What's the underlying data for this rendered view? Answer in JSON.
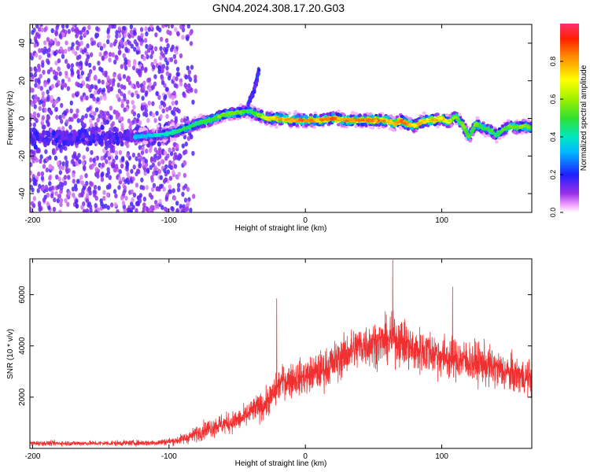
{
  "figure_title": "GN04.2024.308.17.20.G03",
  "colors": {
    "snr_line": "#f03030",
    "frame": "#000000",
    "background": "#ffffff"
  },
  "chart_data": [
    {
      "type": "heatmap",
      "title": "GN04.2024.308.17.20.G03",
      "xlabel": "Height of straight line (km)",
      "ylabel": "Frequency (Hz)",
      "xlim": [
        -202,
        166
      ],
      "ylim": [
        -50,
        50
      ],
      "x_ticks": [
        -200,
        -100,
        0,
        100
      ],
      "y_ticks": [
        -40,
        -20,
        0,
        20,
        40
      ],
      "colorbar": {
        "label": "Normalized spectral amplitude",
        "range": [
          0,
          1
        ],
        "ticks": [
          0.0,
          0.2,
          0.4,
          0.6,
          0.8
        ],
        "colormap": "rainbow (white→magenta→purple→blue→cyan→green→yellow→orange→red)"
      },
      "ridge": {
        "description": "dominant frequency track",
        "x": [
          -125,
          -110,
          -100,
          -90,
          -80,
          -70,
          -60,
          -50,
          -42,
          -35,
          -28,
          -20,
          -10,
          0,
          10,
          20,
          30,
          40,
          50,
          60,
          65,
          70,
          75,
          80,
          85,
          90,
          95,
          100,
          105,
          110,
          115,
          120,
          125,
          130,
          135,
          140,
          145,
          150,
          155,
          160,
          166
        ],
        "freq": [
          -10,
          -9,
          -8,
          -6,
          -3,
          -1,
          2,
          3,
          4,
          2,
          0,
          0,
          -1,
          -1,
          -1,
          0,
          -1,
          -1,
          -1,
          -1,
          -3,
          -1,
          -3,
          -4,
          -2,
          -1,
          -1,
          0,
          -2,
          1,
          -3,
          -10,
          -3,
          -5,
          -6,
          -9,
          -6,
          -4,
          -5,
          -4,
          -5
        ],
        "amplitude": [
          0.35,
          0.4,
          0.45,
          0.5,
          0.5,
          0.55,
          0.6,
          0.6,
          0.5,
          0.6,
          0.75,
          0.85,
          0.85,
          0.9,
          0.85,
          0.9,
          0.85,
          0.9,
          0.9,
          0.85,
          0.8,
          0.9,
          0.85,
          0.8,
          0.85,
          0.8,
          0.85,
          0.8,
          0.7,
          0.6,
          0.6,
          0.55,
          0.6,
          0.5,
          0.55,
          0.5,
          0.55,
          0.6,
          0.6,
          0.6,
          0.55
        ]
      },
      "noise_region": {
        "x_range": [
          -202,
          -80
        ],
        "freq_range": [
          -50,
          50
        ],
        "amplitude": 0.15
      },
      "side_branch": {
        "x": [
          -42,
          -38,
          -34
        ],
        "freq": [
          8,
          14,
          25
        ],
        "amplitude": 0.25
      }
    },
    {
      "type": "line",
      "xlabel": "Height of straight line (km)",
      "ylabel": "SNR (10 * v/v)",
      "xlim": [
        -202,
        166
      ],
      "ylim": [
        0,
        7400
      ],
      "x_ticks": [
        -200,
        -100,
        0,
        100
      ],
      "y_ticks": [
        2000,
        4000,
        6000
      ],
      "series": [
        {
          "envelope": {
            "x": [
              -202,
              -150,
              -110,
              -95,
              -85,
              -75,
              -65,
              -55,
              -45,
              -38,
              -30,
              -22,
              -18,
              -10,
              0,
              10,
              20,
              30,
              40,
              50,
              60,
              65,
              70,
              80,
              90,
              100,
              110,
              120,
              130,
              140,
              150,
              160,
              166
            ],
            "mean": [
              200,
              200,
              220,
              300,
              450,
              700,
              900,
              1000,
              1200,
              1500,
              1700,
              2200,
              2600,
              2700,
              2800,
              3000,
              3300,
              3700,
              4000,
              4100,
              4200,
              4300,
              4200,
              3800,
              3800,
              3600,
              3500,
              3400,
              3300,
              3100,
              2900,
              2800,
              2700
            ],
            "spread": [
              150,
              150,
              180,
              250,
              400,
              550,
              650,
              650,
              700,
              800,
              900,
              1000,
              1000,
              1100,
              1100,
              1200,
              1300,
              1300,
              1400,
              1400,
              1400,
              1500,
              1500,
              1500,
              1400,
              1400,
              1300,
              1300,
              1300,
              1200,
              1200,
              1100,
              1100
            ]
          },
          "peaks": [
            {
              "x": -21,
              "y": 5850
            },
            {
              "x": 64,
              "y": 7350
            },
            {
              "x": 108,
              "y": 6300
            }
          ]
        }
      ]
    }
  ]
}
